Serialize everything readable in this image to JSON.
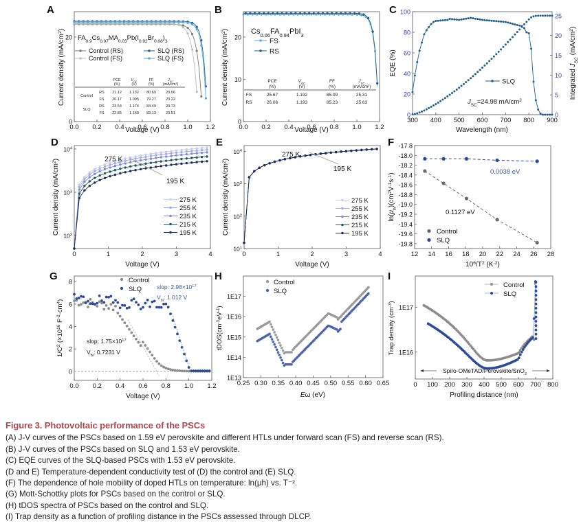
{
  "figure": {
    "title": "Figure 3.  Photovoltaic performance of the PSCs",
    "caption_lines": [
      "(A) J-V curves of the PSCs based on 1.59 eV perovskite and different HTLs under forward scan (FS) and reverse scan (RS).",
      "(B) J-V curves of the PSCs based on SLQ and 1.53 eV perovskite.",
      "(C) EQE curves of the SLQ-based PSCs with 1.53 eV perovskite.",
      "(D and E) Temperature-dependent conductivity test of (D) the control and (E) SLQ.",
      "(F) The dependence of hole mobility of doped HTLs on temperature: ln(μh) vs. T⁻².",
      "(G) Mott-Schottky plots for PSCs based on the control or SLQ.",
      "(H) tDOS spectra of PSCs based on the control and SLQ.",
      "(I) Trap density as a function of profiling distance in the PSCs assessed through DLCP."
    ]
  },
  "colors": {
    "caption_title": "#b5484c",
    "control_rs": "#7a7a7a",
    "control_fs": "#bdbdbd",
    "slq_rs": "#1f5f8b",
    "slq_fs": "#5aa9d6",
    "slq_blue": "#2b4a9a",
    "control_gray": "#8c8c8c",
    "navy": "#1c2a5e",
    "teal": "#1f5a5e"
  },
  "chart_data": [
    {
      "id": "A",
      "type": "line",
      "xlabel": "Voltage (V)",
      "ylabel": "Current density (mA/cm²)",
      "xlim": [
        0,
        1.2
      ],
      "ylim": [
        0,
        26
      ],
      "xticks": [
        "0.0",
        "0.2",
        "0.4",
        "0.6",
        "0.8",
        "1.0",
        "1.2"
      ],
      "yticks": [
        "0",
        "20"
      ],
      "annotation": "FA0.9Cs0.07MA0.03Pb(I0.92Br0.08)3",
      "series": [
        {
          "name": "Control (RS)",
          "jsc": 23.06,
          "voc": 1.132,
          "ff": 80.69
        },
        {
          "name": "Control (FS)",
          "jsc": 23.22,
          "voc": 1.095,
          "ff": 79.27
        },
        {
          "name": "SLQ (RS)",
          "jsc": 23.73,
          "voc": 1.174,
          "ff": 84.49
        },
        {
          "name": "SLQ (FS)",
          "jsc": 23.51,
          "voc": 1.169,
          "ff": 83.13
        }
      ],
      "table": {
        "headers": [
          "PCE (%)",
          "Voc (V)",
          "FF (%)",
          "Jsc (mA/cm²)"
        ],
        "rows": [
          {
            "group": "Control",
            "scan": "RS",
            "values": [
              "21.12",
              "1.132",
              "80.69",
              "23.06"
            ]
          },
          {
            "group": "",
            "scan": "FS",
            "values": [
              "20.17",
              "1.095",
              "79.27",
              "23.22"
            ]
          },
          {
            "group": "SLQ",
            "scan": "RS",
            "values": [
              "23.54",
              "1.174",
              "84.49",
              "23.73"
            ]
          },
          {
            "group": "",
            "scan": "FS",
            "values": [
              "22.85",
              "1.169",
              "83.13",
              "23.51"
            ]
          }
        ]
      }
    },
    {
      "id": "B",
      "type": "line",
      "xlabel": "Voltage (V)",
      "ylabel": "Current density (mA/cm²)",
      "xlim": [
        0,
        1.2
      ],
      "ylim": [
        0,
        26
      ],
      "xticks": [
        "0.0",
        "0.2",
        "0.4",
        "0.6",
        "0.8",
        "1.0",
        "1.2"
      ],
      "yticks": [
        "0",
        "10",
        "20"
      ],
      "annotation": "Cs0.06FA0.94PbI3",
      "series": [
        {
          "name": "FS",
          "jsc": 25.31,
          "voc": 1.192,
          "ff": 85.09
        },
        {
          "name": "RS",
          "jsc": 25.63,
          "voc": 1.193,
          "ff": 85.23
        }
      ],
      "table": {
        "headers": [
          "PCE (%)",
          "Voc (V)",
          "FF (%)",
          "Jsc (mA/cm²)"
        ],
        "rows": [
          {
            "scan": "FS",
            "values": [
              "25.67",
              "1.192",
              "85.09",
              "25.31"
            ]
          },
          {
            "scan": "RS",
            "values": [
              "26.06",
              "1.193",
              "85.23",
              "25.63"
            ]
          }
        ]
      }
    },
    {
      "id": "C",
      "type": "line",
      "xlabel": "Wavelength (nm)",
      "ylabel": "EQE (%)",
      "y2label": "Integrated Jsc (mA/cm²)",
      "xlim": [
        300,
        900
      ],
      "ylim": [
        0,
        100
      ],
      "y2lim": [
        0,
        26
      ],
      "xticks": [
        "300",
        "400",
        "500",
        "600",
        "700",
        "800",
        "900"
      ],
      "yticks": [
        "0",
        "20",
        "40",
        "60",
        "80",
        "100"
      ],
      "y2ticks": [
        "0",
        "5",
        "10",
        "15",
        "20",
        "25"
      ],
      "legend": "SLQ",
      "annotation": "JSC=24.98 mA/cm²",
      "eqe": {
        "x": [
          300,
          310,
          320,
          330,
          340,
          350,
          360,
          370,
          380,
          390,
          400,
          450,
          460,
          500,
          550,
          600,
          650,
          700,
          750,
          770,
          780,
          790,
          800,
          810,
          820,
          830,
          840,
          850,
          860,
          900
        ],
        "y": [
          22,
          38,
          51,
          62,
          70,
          78,
          82,
          85,
          88,
          90,
          91,
          92,
          93,
          92,
          94,
          92,
          91,
          90,
          87,
          86,
          84,
          80,
          79,
          64,
          32,
          14,
          5,
          1,
          0,
          0
        ]
      },
      "integrated_jsc_final": 24.98
    },
    {
      "id": "D",
      "type": "line",
      "yscale": "log",
      "xlabel": "Voltage (V)",
      "ylabel": "Current density (mA/cm²)",
      "xlim": [
        0,
        4
      ],
      "ylim": [
        50,
        12000
      ],
      "xticks": [
        "0",
        "1",
        "2",
        "3",
        "4"
      ],
      "yticks": [
        "10²",
        "10³",
        "10⁴"
      ],
      "annotations": [
        "275 K",
        "195 K"
      ],
      "series": [
        {
          "name": "275 K",
          "j_at_4V": 11000
        },
        {
          "name": "255 K",
          "j_at_4V": 9800
        },
        {
          "name": "235 K",
          "j_at_4V": 8500
        },
        {
          "name": "215 K",
          "j_at_4V": 6800
        },
        {
          "name": "195 K",
          "j_at_4V": 5300
        }
      ]
    },
    {
      "id": "E",
      "type": "line",
      "yscale": "log",
      "xlabel": "Voltage (V)",
      "ylabel": "Current density (mA/cm²)",
      "xlim": [
        0,
        4
      ],
      "ylim": [
        10,
        15000
      ],
      "xticks": [
        "0",
        "1",
        "2",
        "3",
        "4"
      ],
      "yticks": [
        "10¹",
        "10²",
        "10³",
        "10⁴"
      ],
      "annotations": [
        "275 K",
        "195 K"
      ],
      "series": [
        {
          "name": "275 K",
          "j_at_4V": 12000
        },
        {
          "name": "255 K",
          "j_at_4V": 12000
        },
        {
          "name": "235 K",
          "j_at_4V": 12000
        },
        {
          "name": "215 K",
          "j_at_4V": 12000
        },
        {
          "name": "195 K",
          "j_at_4V": 12000
        }
      ]
    },
    {
      "id": "F",
      "type": "scatter",
      "xlabel": "10⁶/T² (K⁻²)",
      "ylabel": "ln(μh)(cm²V⁻¹s⁻¹)",
      "xlim": [
        12,
        28
      ],
      "ylim": [
        -19.9,
        -17.8
      ],
      "xticks": [
        "12",
        "14",
        "16",
        "18",
        "20",
        "22",
        "24",
        "26",
        "28"
      ],
      "yticks": [
        "-17.8",
        "-18.0",
        "-18.2",
        "-18.4",
        "-18.6",
        "-18.8",
        "-19.0",
        "-19.2",
        "-19.4",
        "-19.6",
        "-19.8"
      ],
      "series": [
        {
          "name": "Control",
          "x": [
            13.2,
            15.4,
            18.1,
            21.7,
            26.4
          ],
          "y": [
            -18.32,
            -18.57,
            -18.88,
            -19.31,
            -19.78
          ],
          "label": "0.1127 eV"
        },
        {
          "name": "SLQ",
          "x": [
            13.2,
            15.4,
            18.1,
            21.7,
            26.4
          ],
          "y": [
            -18.07,
            -18.07,
            -18.07,
            -18.1,
            -18.12
          ],
          "label": "0.0038 eV"
        }
      ]
    },
    {
      "id": "G",
      "type": "scatter",
      "xlabel": "Voltage (V)",
      "ylabel": "1/C² (×10¹⁶ F⁻²·cm⁴)",
      "xlim": [
        0,
        1.2
      ],
      "ylim": [
        -0.8,
        8.5
      ],
      "xticks": [
        "0.0",
        "0.2",
        "0.4",
        "0.6",
        "0.8",
        "1.0",
        "1.2"
      ],
      "yticks": [
        "0",
        "2",
        "4",
        "6",
        "8"
      ],
      "series": [
        {
          "name": "Control",
          "slope": "1.75×10¹⁷",
          "vbi": "0.7231 V"
        },
        {
          "name": "SLQ",
          "slope": "2.98×10¹⁷",
          "vbi": "1.012 V"
        }
      ],
      "annotations": {
        "control_slope": "slop: 1.75×10¹⁷",
        "control_vbi": "Vbi: 0.7231 V",
        "slq_slope": "slop: 2.98×10¹⁷",
        "slq_vbi": "Vbi: 1.012 V"
      }
    },
    {
      "id": "H",
      "type": "scatter",
      "yscale": "log",
      "xlabel": "Eω (eV)",
      "ylabel": "tDOS(cm⁻³eV⁻¹)",
      "xlim": [
        0.25,
        0.65
      ],
      "ylim": [
        10000000000000.0,
        1e+18
      ],
      "xticks": [
        "0.25",
        "0.30",
        "0.35",
        "0.40",
        "0.45",
        "0.50",
        "0.55",
        "0.60",
        "0.65"
      ],
      "yticks": [
        "1E13",
        "1E14",
        "1E15",
        "1E16",
        "1E17"
      ],
      "series": [
        {
          "name": "Control"
        },
        {
          "name": "SLQ"
        }
      ]
    },
    {
      "id": "I",
      "type": "line",
      "yscale": "log",
      "xlabel": "Profiling distance (nm)",
      "ylabel": "Trap density (cm⁻³)",
      "xlim": [
        0,
        800
      ],
      "ylim": [
        2500000000000000.0,
        5e+17
      ],
      "xticks": [
        "0",
        "100",
        "200",
        "300",
        "400",
        "500",
        "600",
        "700",
        "800"
      ],
      "yticks": [
        "1E16",
        "1E17"
      ],
      "annotation": "Spiro-OMeTAD/Perovskite/SnO2",
      "series": [
        {
          "name": "Control",
          "min": 6500000000000000.0
        },
        {
          "name": "SLQ",
          "min": 4300000000000000.0
        }
      ]
    }
  ]
}
